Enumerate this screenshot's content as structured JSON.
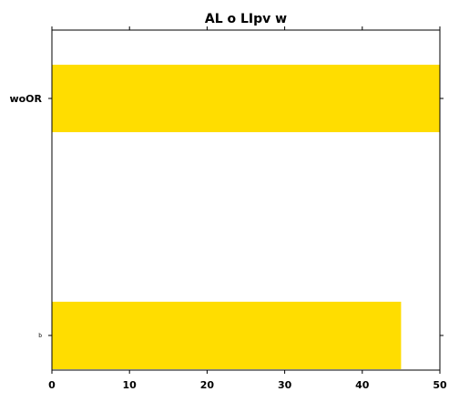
{
  "chart_data": {
    "type": "bar",
    "orientation": "horizontal",
    "title": "AL o LIpv w",
    "xlabel": "",
    "ylabel": "",
    "categories": [
      "woOR",
      "b"
    ],
    "values": [
      50,
      45
    ],
    "xlim": [
      0,
      50
    ],
    "xticks": [
      0,
      10,
      20,
      30,
      40,
      50
    ],
    "grid": false,
    "legend": "none",
    "bar_color": "#ffdd00"
  }
}
